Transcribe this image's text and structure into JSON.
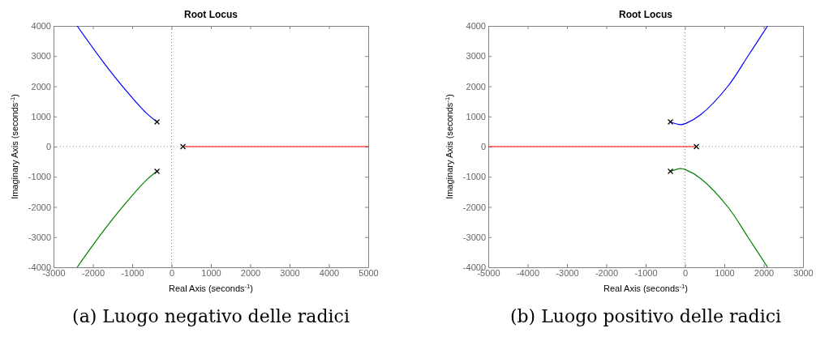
{
  "chart_data": [
    {
      "type": "line",
      "title": "Root Locus",
      "xlabel": "Real Axis (seconds$^{-1}$)",
      "ylabel": "Imaginary Axis (seconds$^{-1}$)",
      "xlim": [
        -3000,
        5000
      ],
      "ylim": [
        -4000,
        4000
      ],
      "xticks": [
        -3000,
        -2000,
        -1000,
        0,
        1000,
        2000,
        3000,
        4000,
        5000
      ],
      "yticks": [
        -4000,
        -3000,
        -2000,
        -1000,
        0,
        1000,
        2000,
        3000,
        4000
      ],
      "series": [
        {
          "color": "#0000ff",
          "x": [
            -370,
            -640,
            -1190,
            -1740,
            -2400
          ],
          "values": [
            820,
            1110,
            1910,
            2810,
            4000
          ]
        },
        {
          "color": "#008000",
          "x": [
            -370,
            -640,
            -1190,
            -1740,
            -2400
          ],
          "values": [
            -820,
            -1110,
            -1910,
            -2810,
            -4000
          ]
        },
        {
          "color": "#ff0000",
          "x": [
            290,
            5000
          ],
          "values": [
            0,
            0
          ]
        },
        {
          "type": "scatter",
          "marker": "cross",
          "color": "#000000",
          "x": [
            -370,
            -370,
            290
          ],
          "values": [
            820,
            -820,
            0
          ]
        }
      ],
      "ref_lines": [
        {
          "axis": "x",
          "value": 0,
          "color": "#808080",
          "line_style": "dotted"
        },
        {
          "axis": "y",
          "value": 0,
          "color": "#999999",
          "line_style": "dotted"
        }
      ],
      "annotations": [
        "(a) Luogo negativo delle radici"
      ]
    },
    {
      "type": "line",
      "title": "Root Locus",
      "xlabel": "Real Axis (seconds$^{-1}$)",
      "ylabel": "Imaginary Axis (seconds$^{-1}$)",
      "xlim": [
        -5000,
        3000
      ],
      "ylim": [
        -4000,
        4000
      ],
      "xticks": [
        -5000,
        -4000,
        -3000,
        -2000,
        -1000,
        0,
        1000,
        2000,
        3000
      ],
      "yticks": [
        -4000,
        -3000,
        -2000,
        -1000,
        0,
        1000,
        2000,
        3000,
        4000
      ],
      "series": [
        {
          "color": "#0000ff",
          "x": [
            -370,
            -120,
            20,
            400,
            1090,
            1600,
            2100
          ],
          "values": [
            820,
            730,
            770,
            1060,
            2000,
            3000,
            4000
          ]
        },
        {
          "color": "#008000",
          "x": [
            -370,
            -120,
            20,
            400,
            1090,
            1600,
            2100
          ],
          "values": [
            -820,
            -730,
            -770,
            -1060,
            -2000,
            -3000,
            -4000
          ]
        },
        {
          "color": "#ff0000",
          "x": [
            290,
            -5000
          ],
          "values": [
            0,
            0
          ]
        },
        {
          "type": "scatter",
          "marker": "cross",
          "color": "#000000",
          "x": [
            -370,
            -370,
            290
          ],
          "values": [
            820,
            -820,
            0
          ]
        }
      ],
      "ref_lines": [
        {
          "axis": "x",
          "value": 0,
          "color": "#808080",
          "line_style": "dotted"
        },
        {
          "axis": "y",
          "value": 0,
          "color": "#999999",
          "line_style": "dotted"
        }
      ],
      "annotations": [
        "(b) Luogo positivo delle radici"
      ]
    }
  ]
}
